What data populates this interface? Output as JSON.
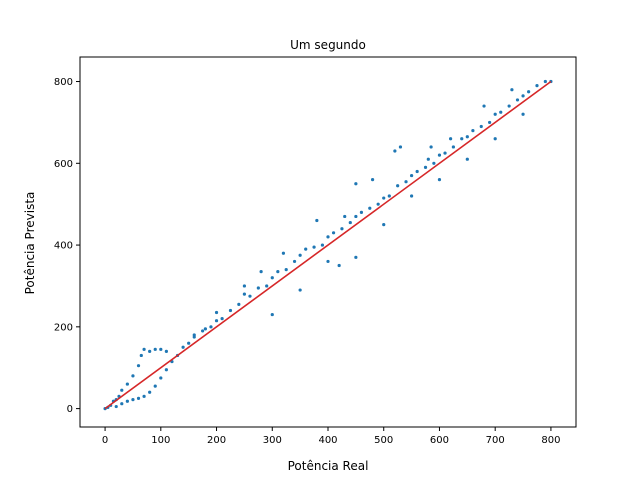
{
  "chart_data": {
    "type": "scatter",
    "title": "Um segundo",
    "xlabel": "Potência Real",
    "ylabel": "Potência Prevista",
    "xlim": [
      -45,
      845
    ],
    "ylim": [
      -45,
      860
    ],
    "xticks": [
      0,
      100,
      200,
      300,
      400,
      500,
      600,
      700,
      800
    ],
    "yticks": [
      0,
      200,
      400,
      600,
      800
    ],
    "grid": false,
    "legend": "none",
    "series": [
      {
        "kind": "scatter",
        "color": "#1f77b4",
        "points": [
          [
            0,
            0
          ],
          [
            5,
            3
          ],
          [
            10,
            8
          ],
          [
            15,
            18
          ],
          [
            20,
            22
          ],
          [
            25,
            30
          ],
          [
            30,
            45
          ],
          [
            40,
            60
          ],
          [
            50,
            80
          ],
          [
            60,
            105
          ],
          [
            65,
            130
          ],
          [
            70,
            145
          ],
          [
            80,
            140
          ],
          [
            90,
            145
          ],
          [
            100,
            145
          ],
          [
            110,
            140
          ],
          [
            20,
            5
          ],
          [
            30,
            12
          ],
          [
            40,
            18
          ],
          [
            50,
            22
          ],
          [
            60,
            25
          ],
          [
            70,
            30
          ],
          [
            80,
            40
          ],
          [
            90,
            55
          ],
          [
            100,
            75
          ],
          [
            110,
            95
          ],
          [
            120,
            115
          ],
          [
            130,
            130
          ],
          [
            140,
            150
          ],
          [
            150,
            160
          ],
          [
            160,
            180
          ],
          [
            175,
            190
          ],
          [
            190,
            200
          ],
          [
            200,
            215
          ],
          [
            210,
            220
          ],
          [
            225,
            240
          ],
          [
            240,
            255
          ],
          [
            250,
            280
          ],
          [
            260,
            275
          ],
          [
            275,
            295
          ],
          [
            290,
            300
          ],
          [
            300,
            320
          ],
          [
            310,
            335
          ],
          [
            325,
            340
          ],
          [
            340,
            360
          ],
          [
            350,
            375
          ],
          [
            360,
            390
          ],
          [
            375,
            395
          ],
          [
            390,
            400
          ],
          [
            400,
            420
          ],
          [
            410,
            430
          ],
          [
            425,
            440
          ],
          [
            440,
            455
          ],
          [
            450,
            470
          ],
          [
            460,
            480
          ],
          [
            475,
            490
          ],
          [
            490,
            500
          ],
          [
            500,
            515
          ],
          [
            510,
            520
          ],
          [
            525,
            545
          ],
          [
            540,
            555
          ],
          [
            550,
            570
          ],
          [
            560,
            580
          ],
          [
            575,
            590
          ],
          [
            590,
            600
          ],
          [
            600,
            620
          ],
          [
            610,
            625
          ],
          [
            625,
            640
          ],
          [
            640,
            660
          ],
          [
            650,
            665
          ],
          [
            660,
            680
          ],
          [
            675,
            690
          ],
          [
            690,
            700
          ],
          [
            700,
            720
          ],
          [
            710,
            725
          ],
          [
            725,
            740
          ],
          [
            740,
            755
          ],
          [
            750,
            765
          ],
          [
            760,
            775
          ],
          [
            775,
            790
          ],
          [
            790,
            800
          ],
          [
            800,
            800
          ],
          [
            300,
            230
          ],
          [
            350,
            290
          ],
          [
            400,
            360
          ],
          [
            420,
            350
          ],
          [
            450,
            370
          ],
          [
            500,
            450
          ],
          [
            550,
            520
          ],
          [
            600,
            560
          ],
          [
            650,
            610
          ],
          [
            700,
            660
          ],
          [
            750,
            720
          ],
          [
            320,
            380
          ],
          [
            380,
            460
          ],
          [
            430,
            470
          ],
          [
            480,
            560
          ],
          [
            530,
            640
          ],
          [
            580,
            610
          ],
          [
            620,
            660
          ],
          [
            680,
            740
          ],
          [
            730,
            780
          ],
          [
            450,
            550
          ],
          [
            520,
            630
          ],
          [
            585,
            640
          ],
          [
            250,
            300
          ],
          [
            280,
            335
          ],
          [
            200,
            235
          ],
          [
            180,
            195
          ],
          [
            160,
            175
          ]
        ]
      },
      {
        "kind": "line",
        "color": "#d62728",
        "points": [
          [
            0,
            0
          ],
          [
            800,
            800
          ]
        ]
      }
    ]
  }
}
